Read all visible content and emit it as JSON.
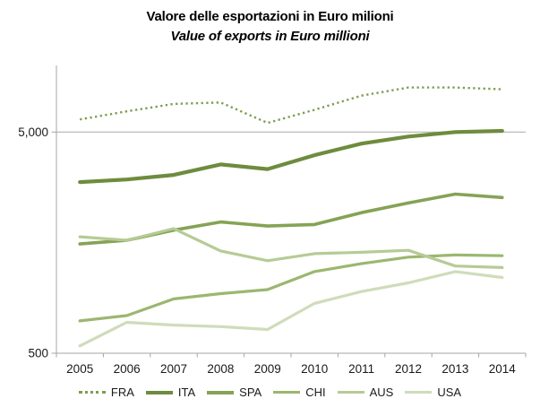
{
  "title": "Valore delle esportazioni in Euro milioni",
  "subtitle": "Value of exports in Euro millioni",
  "colors": {
    "axis": "#a6a6a6",
    "gridline": "#a9a9a9",
    "axis_text": "#1a1a1a",
    "title_text": "#000000"
  },
  "chart_data": {
    "type": "line",
    "x": [
      "2005",
      "2006",
      "2007",
      "2008",
      "2009",
      "2010",
      "2011",
      "2012",
      "2013",
      "2014"
    ],
    "xlabel": "",
    "ylabel": "",
    "y_scale": "log",
    "ylim": [
      500,
      10000
    ],
    "y_ticks": [
      {
        "value": 5000,
        "label": "5,000"
      },
      {
        "value": 500,
        "label": "500"
      }
    ],
    "grid": "horizontal gridline at labeled tick only",
    "legend_position": "bottom",
    "series": [
      {
        "name": "FRA",
        "style": "dotted",
        "color": "#7e9d50",
        "width": 2.4,
        "values": [
          5700,
          6200,
          6700,
          6800,
          5500,
          6300,
          7300,
          7950,
          7950,
          7800
        ]
      },
      {
        "name": "ITA",
        "style": "solid",
        "color": "#6d8c3d",
        "width": 4.2,
        "values": [
          2970,
          3050,
          3200,
          3570,
          3400,
          3930,
          4430,
          4770,
          5000,
          5060
        ]
      },
      {
        "name": "SPA",
        "style": "solid",
        "color": "#85a355",
        "width": 3.6,
        "values": [
          1560,
          1620,
          1800,
          1960,
          1880,
          1910,
          2160,
          2390,
          2620,
          2530
        ]
      },
      {
        "name": "CHI",
        "style": "solid",
        "color": "#9bb770",
        "width": 3.2,
        "values": [
          700,
          740,
          880,
          930,
          970,
          1170,
          1270,
          1360,
          1390,
          1380
        ]
      },
      {
        "name": "AUS",
        "style": "solid",
        "color": "#b6cb96",
        "width": 3.2,
        "values": [
          1680,
          1620,
          1830,
          1450,
          1310,
          1410,
          1430,
          1460,
          1240,
          1220
        ]
      },
      {
        "name": "USA",
        "style": "solid",
        "color": "#cfdcba",
        "width": 3.2,
        "values": [
          540,
          690,
          670,
          660,
          640,
          840,
          950,
          1040,
          1170,
          1100
        ]
      }
    ]
  }
}
